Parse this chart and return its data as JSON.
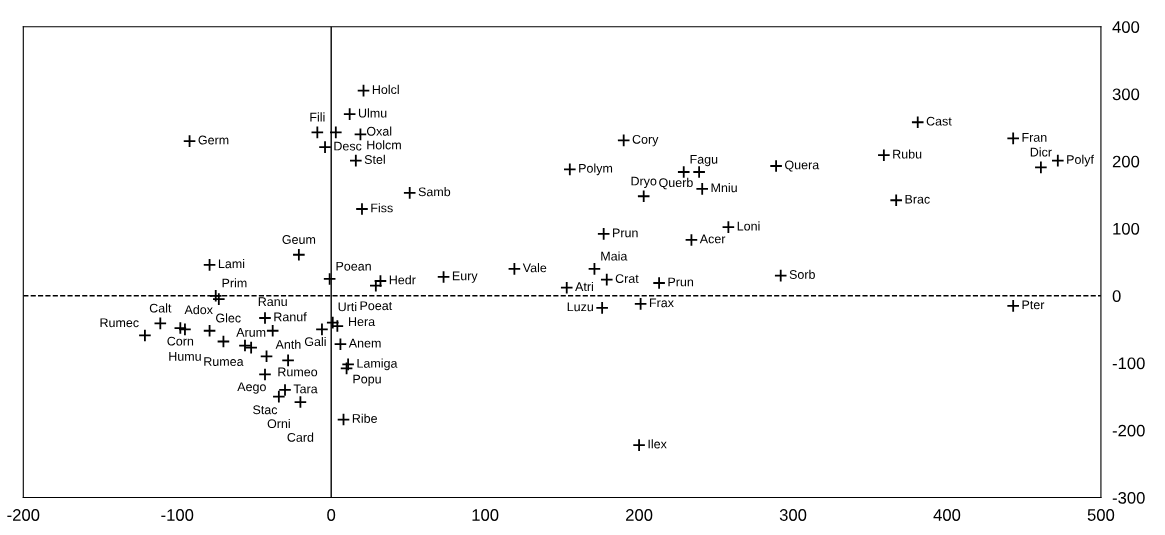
{
  "chart_data": {
    "type": "scatter",
    "marker": "cross",
    "grid": false,
    "xlim": [
      -200,
      500
    ],
    "ylim": [
      -300,
      400
    ],
    "xticks": [
      -200,
      -100,
      0,
      100,
      200,
      300,
      400,
      500
    ],
    "yticks": [
      -300,
      -200,
      -100,
      0,
      100,
      200,
      300,
      400
    ],
    "ref_lines": [
      {
        "axis": "x",
        "value": 0,
        "color": "#000000",
        "line_style": "solid"
      },
      {
        "axis": "y",
        "value": 0,
        "color": "#000000",
        "line_style": "dashed"
      }
    ],
    "series": [
      {
        "color": "#000000",
        "x": [
          21,
          12,
          -9,
          3,
          -4,
          19,
          16,
          -92,
          51,
          20,
          -21,
          -79,
          -1,
          32,
          29,
          -75,
          -73,
          -111,
          -98,
          -95,
          -121,
          -79,
          -70,
          -56,
          -52,
          -42,
          -43,
          -38,
          1,
          -6,
          4,
          -28,
          -43,
          -30,
          -34,
          -20,
          6,
          11,
          10,
          8,
          190,
          155,
          229,
          239,
          241,
          203,
          258,
          177,
          234,
          119,
          171,
          179,
          73,
          153,
          213,
          176,
          201,
          200,
          289,
          381,
          359,
          367,
          443,
          472,
          461,
          292,
          443
        ],
        "values": [
          305,
          270,
          243,
          243,
          221,
          240,
          201,
          230,
          153,
          129,
          61,
          46,
          25,
          22,
          15,
          0,
          -5,
          -41,
          -48,
          -50,
          -59,
          -52,
          -68,
          -74,
          -77,
          -90,
          -33,
          -52,
          -40,
          -50,
          -45,
          -96,
          -117,
          -140,
          -150,
          -158,
          -72,
          -102,
          -108,
          -184,
          231,
          188,
          184,
          184,
          159,
          148,
          102,
          92,
          83,
          40,
          40,
          24,
          28,
          12,
          19,
          -18,
          -12,
          -222,
          193,
          258,
          209,
          142,
          234,
          201,
          191,
          30,
          -15
        ]
      }
    ],
    "annotations": [
      {
        "text": "Holcl",
        "x": 21,
        "y": 305
      },
      {
        "text": "Ulmu",
        "x": 12,
        "y": 270
      },
      {
        "text": "Fili",
        "x": -9,
        "y": 243
      },
      {
        "text": "Oxal",
        "x": 3,
        "y": 243
      },
      {
        "text": "Desc",
        "x": -4,
        "y": 221
      },
      {
        "text": "Holcm",
        "x": 19,
        "y": 240
      },
      {
        "text": "Stel",
        "x": 16,
        "y": 201
      },
      {
        "text": "Germ",
        "x": -92,
        "y": 230
      },
      {
        "text": "Samb",
        "x": 51,
        "y": 153
      },
      {
        "text": "Fiss",
        "x": 20,
        "y": 129
      },
      {
        "text": "Geum",
        "x": -21,
        "y": 61
      },
      {
        "text": "Lami",
        "x": -79,
        "y": 46
      },
      {
        "text": "Poean",
        "x": -1,
        "y": 25
      },
      {
        "text": "Hedr",
        "x": 32,
        "y": 22
      },
      {
        "text": "Poeat",
        "x": 29,
        "y": 15
      },
      {
        "text": "Prim",
        "x": -75,
        "y": 0
      },
      {
        "text": "Adox",
        "x": -73,
        "y": -5
      },
      {
        "text": "Calt",
        "x": -111,
        "y": -41
      },
      {
        "text": "Corn",
        "x": -98,
        "y": -48
      },
      {
        "text": "Humu",
        "x": -95,
        "y": -50
      },
      {
        "text": "Rumec",
        "x": -121,
        "y": -59
      },
      {
        "text": "Glec",
        "x": -79,
        "y": -52
      },
      {
        "text": "Rumea",
        "x": -70,
        "y": -68
      },
      {
        "text": "Anth",
        "x": -56,
        "y": -74
      },
      {
        "text": "Arum",
        "x": -52,
        "y": -77
      },
      {
        "text": "Rumeo",
        "x": -42,
        "y": -90
      },
      {
        "text": "Ranuf",
        "x": -43,
        "y": -33
      },
      {
        "text": "Ranu",
        "x": -38,
        "y": -52
      },
      {
        "text": "Hera",
        "x": 1,
        "y": -40
      },
      {
        "text": "Urti",
        "x": -6,
        "y": -50
      },
      {
        "text": "Gali",
        "x": 4,
        "y": -45
      },
      {
        "text": "Aego",
        "x": -28,
        "y": -96
      },
      {
        "text": "Stac",
        "x": -43,
        "y": -117
      },
      {
        "text": "Tara",
        "x": -30,
        "y": -140
      },
      {
        "text": "Orni",
        "x": -34,
        "y": -150
      },
      {
        "text": "Card",
        "x": -20,
        "y": -158
      },
      {
        "text": "Anem",
        "x": 6,
        "y": -72
      },
      {
        "text": "Lamiga",
        "x": 11,
        "y": -102
      },
      {
        "text": "Popu",
        "x": 10,
        "y": -108
      },
      {
        "text": "Ribe",
        "x": 8,
        "y": -184
      },
      {
        "text": "Cory",
        "x": 190,
        "y": 231
      },
      {
        "text": "Polym",
        "x": 155,
        "y": 188
      },
      {
        "text": "Fagu",
        "x": 229,
        "y": 184
      },
      {
        "text": "Querb",
        "x": 239,
        "y": 184
      },
      {
        "text": "Mniu",
        "x": 241,
        "y": 159
      },
      {
        "text": "Dryo",
        "x": 203,
        "y": 148
      },
      {
        "text": "Loni",
        "x": 258,
        "y": 102
      },
      {
        "text": "Prun",
        "x": 177,
        "y": 92
      },
      {
        "text": "Acer",
        "x": 234,
        "y": 83
      },
      {
        "text": "Vale",
        "x": 119,
        "y": 40
      },
      {
        "text": "Maia",
        "x": 171,
        "y": 40
      },
      {
        "text": "Crat",
        "x": 179,
        "y": 24
      },
      {
        "text": "Eury",
        "x": 73,
        "y": 28
      },
      {
        "text": "Atri",
        "x": 153,
        "y": 12
      },
      {
        "text": "Prun",
        "x": 213,
        "y": 19
      },
      {
        "text": "Luzu",
        "x": 176,
        "y": -18
      },
      {
        "text": "Frax",
        "x": 201,
        "y": -12
      },
      {
        "text": "Ilex",
        "x": 200,
        "y": -222
      },
      {
        "text": "Quera",
        "x": 289,
        "y": 193
      },
      {
        "text": "Cast",
        "x": 381,
        "y": 258
      },
      {
        "text": "Rubu",
        "x": 359,
        "y": 209
      },
      {
        "text": "Brac",
        "x": 367,
        "y": 142
      },
      {
        "text": "Fran",
        "x": 443,
        "y": 234
      },
      {
        "text": "Polyf",
        "x": 472,
        "y": 201
      },
      {
        "text": "Dicr",
        "x": 461,
        "y": 191
      },
      {
        "text": "Sorb",
        "x": 292,
        "y": 30
      },
      {
        "text": "Pter",
        "x": 443,
        "y": -15
      }
    ]
  }
}
